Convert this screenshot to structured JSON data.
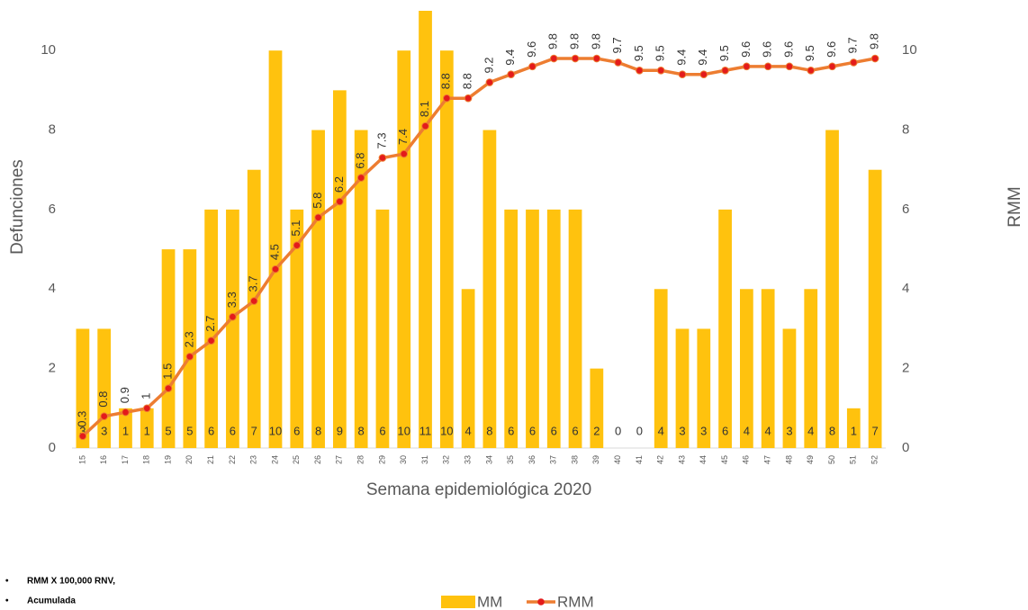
{
  "chart_data": {
    "type": "bar_line",
    "x_label": "Semana epidemiológica 2020",
    "y_label": "Defunciones",
    "y2_label": "RMM",
    "categories": [
      "15",
      "16",
      "17",
      "18",
      "19",
      "20",
      "21",
      "22",
      "23",
      "24",
      "25",
      "26",
      "27",
      "28",
      "29",
      "30",
      "31",
      "32",
      "33",
      "34",
      "35",
      "36",
      "37",
      "38",
      "39",
      "40",
      "41",
      "42",
      "43",
      "44",
      "45",
      "46",
      "47",
      "48",
      "49",
      "50",
      "51",
      "52"
    ],
    "series": [
      {
        "name": "MM",
        "type": "bar",
        "color": "#ffc20e",
        "values": [
          3,
          3,
          1,
          1,
          5,
          5,
          6,
          6,
          7,
          10,
          6,
          8,
          9,
          8,
          6,
          10,
          11,
          10,
          4,
          8,
          6,
          6,
          6,
          6,
          2,
          0,
          0,
          4,
          3,
          3,
          6,
          4,
          4,
          3,
          4,
          8,
          1,
          7
        ]
      },
      {
        "name": "RMM",
        "type": "line",
        "axis": "y2",
        "color": "#ed7d31",
        "marker_color": "#e31b1b",
        "values": [
          0.3,
          0.8,
          0.9,
          1,
          1.5,
          2.3,
          2.7,
          3.3,
          3.7,
          4.5,
          5.1,
          5.8,
          6.2,
          6.8,
          7.3,
          7.4,
          8.1,
          8.8,
          8.8,
          9.2,
          9.4,
          9.6,
          9.8,
          9.8,
          9.8,
          9.7,
          9.5,
          9.5,
          9.4,
          9.4,
          9.5,
          9.6,
          9.6,
          9.6,
          9.5,
          9.6,
          9.7,
          9.8
        ]
      }
    ],
    "ylim": [
      0,
      11
    ],
    "yticks": [
      0,
      2,
      4,
      6,
      8,
      10
    ],
    "y2lim": [
      0,
      11
    ],
    "y2ticks": [
      0,
      2,
      4,
      6,
      8,
      10
    ],
    "notes": [
      "RMM X 100,000 RNV,",
      "Acumulada"
    ],
    "legend": "bottom"
  }
}
